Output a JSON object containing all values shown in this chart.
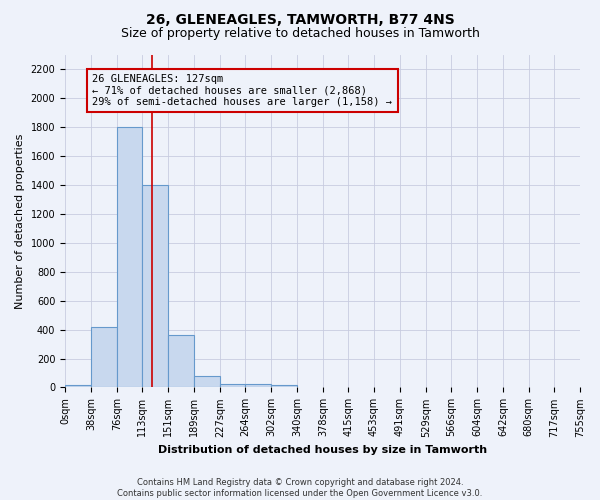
{
  "title": "26, GLENEAGLES, TAMWORTH, B77 4NS",
  "subtitle": "Size of property relative to detached houses in Tamworth",
  "xlabel": "Distribution of detached houses by size in Tamworth",
  "ylabel": "Number of detached properties",
  "bin_labels": [
    "0sqm",
    "38sqm",
    "76sqm",
    "113sqm",
    "151sqm",
    "189sqm",
    "227sqm",
    "264sqm",
    "302sqm",
    "340sqm",
    "378sqm",
    "415sqm",
    "453sqm",
    "491sqm",
    "529sqm",
    "566sqm",
    "604sqm",
    "642sqm",
    "680sqm",
    "717sqm",
    "755sqm"
  ],
  "bin_edges": [
    0,
    38,
    76,
    113,
    151,
    189,
    227,
    264,
    302,
    340,
    378,
    415,
    453,
    491,
    529,
    566,
    604,
    642,
    680,
    717,
    755
  ],
  "bar_heights": [
    20,
    420,
    1800,
    1400,
    360,
    80,
    25,
    25,
    20,
    0,
    0,
    0,
    0,
    0,
    0,
    0,
    0,
    0,
    0,
    0
  ],
  "bar_color": "#c8d8ee",
  "bar_edge_color": "#6699cc",
  "ylim": [
    0,
    2300
  ],
  "yticks": [
    0,
    200,
    400,
    600,
    800,
    1000,
    1200,
    1400,
    1600,
    1800,
    2000,
    2200
  ],
  "red_line_x": 127,
  "annotation_line1": "26 GLENEAGLES: 127sqm",
  "annotation_line2": "← 71% of detached houses are smaller (2,868)",
  "annotation_line3": "29% of semi-detached houses are larger (1,158) →",
  "annotation_box_color": "#cc0000",
  "footer_text": "Contains HM Land Registry data © Crown copyright and database right 2024.\nContains public sector information licensed under the Open Government Licence v3.0.",
  "background_color": "#eef2fa",
  "grid_color": "#c8cce0",
  "title_fontsize": 10,
  "subtitle_fontsize": 9,
  "ylabel_fontsize": 8,
  "xlabel_fontsize": 8,
  "tick_fontsize": 7,
  "annot_fontsize": 7.5,
  "footer_fontsize": 6
}
